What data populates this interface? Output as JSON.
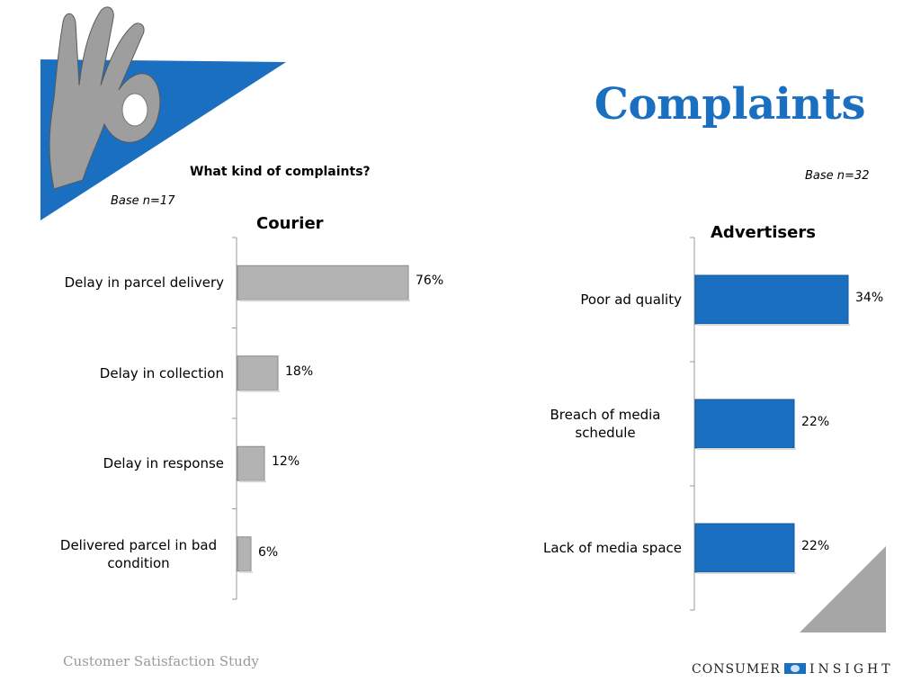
{
  "slide": {
    "title": "Complaints",
    "question": "What kind of complaints?",
    "footer": "Customer Satisfaction Study",
    "logo_left": "CONSUMER",
    "logo_right": "INSIGHT",
    "colors": {
      "accent": "#1a6fc0",
      "gray_bar": "#b3b3b3"
    }
  },
  "chart_data": [
    {
      "type": "bar",
      "orientation": "horizontal",
      "title": "Courier",
      "base_note": "Base n=17",
      "categories": [
        "Delay in parcel delivery",
        "Delay in collection",
        "Delay in response",
        "Delivered parcel in bad condition"
      ],
      "values": [
        76,
        18,
        12,
        6
      ],
      "value_labels": [
        "76%",
        "18%",
        "12%",
        "6%"
      ],
      "unit": "%",
      "color": "#b3b3b3"
    },
    {
      "type": "bar",
      "orientation": "horizontal",
      "title": "Advertisers",
      "base_note": "Base n=32",
      "categories": [
        "Poor ad quality",
        "Breach of media schedule",
        "Lack of media space"
      ],
      "values": [
        34,
        22,
        22
      ],
      "value_labels": [
        "34%",
        "22%",
        "22%"
      ],
      "unit": "%",
      "color": "#1a6fc0"
    }
  ]
}
